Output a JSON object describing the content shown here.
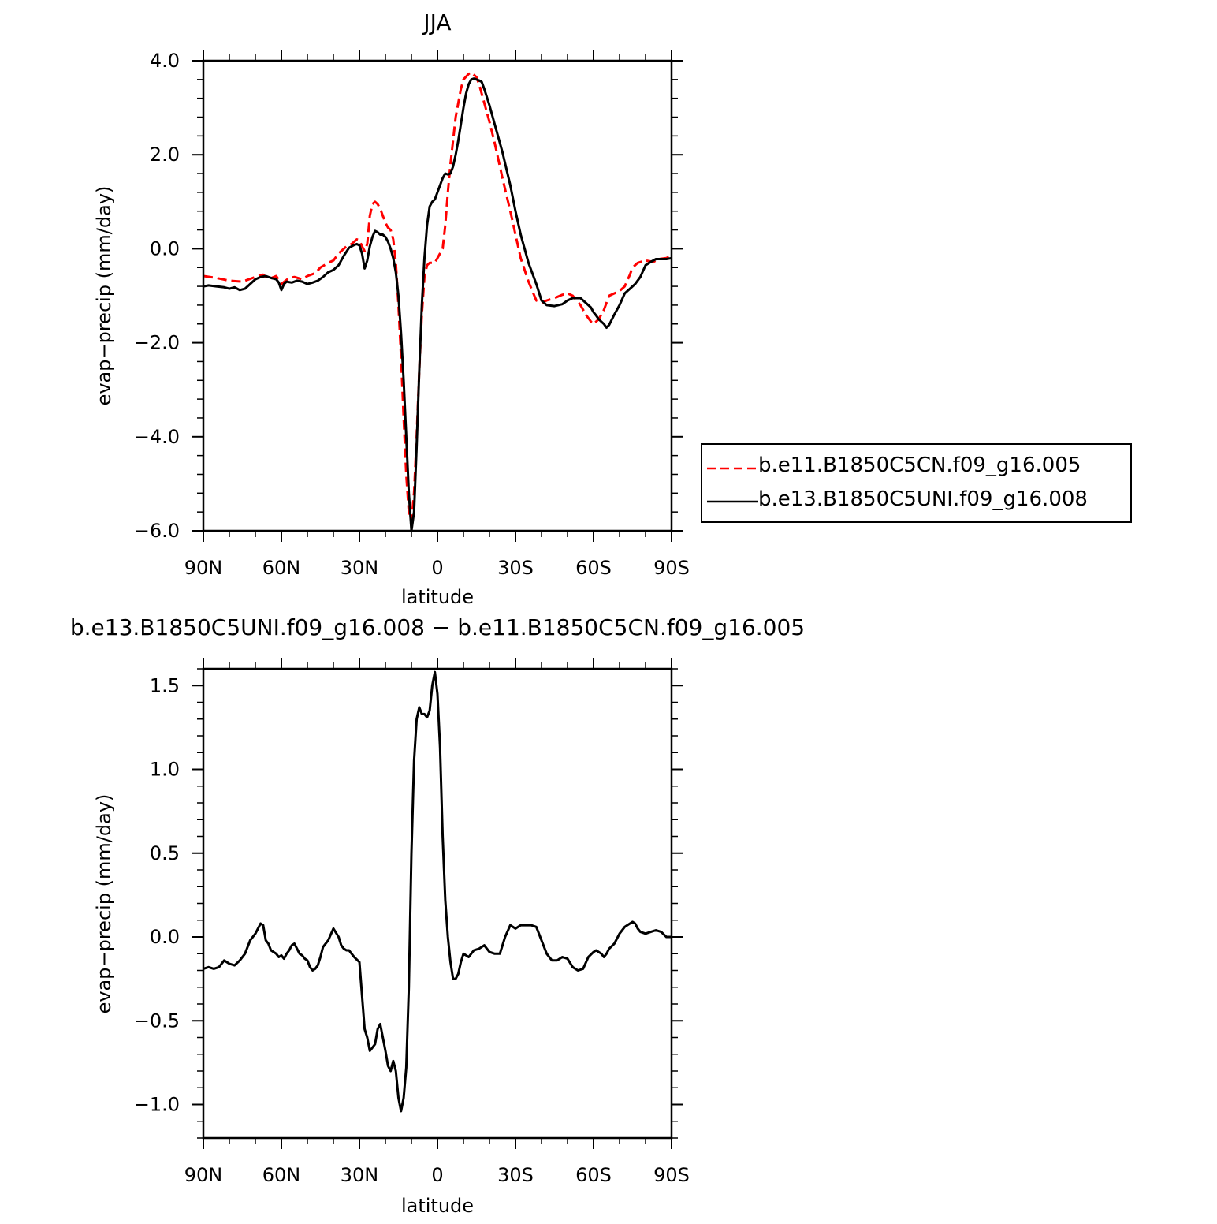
{
  "chart_data": [
    {
      "type": "line",
      "title": "JJA",
      "xlabel": "latitude",
      "ylabel": "evap−precip (mm/day)",
      "xlim": [
        90,
        -90
      ],
      "ylim": [
        -6.0,
        4.0
      ],
      "xticks": [
        90,
        60,
        30,
        0,
        -30,
        -60,
        -90
      ],
      "xticklabels": [
        "90N",
        "60N",
        "30N",
        "0",
        "30S",
        "60S",
        "90S"
      ],
      "yticks": [
        4.0,
        2.0,
        0.0,
        -2.0,
        -4.0,
        -6.0
      ],
      "yticklabels": [
        "4.0",
        "2.0",
        "0.0",
        "−2.0",
        "−4.0",
        "−6.0"
      ],
      "legend_position": "right",
      "series": [
        {
          "name": "b.e11.B1850C5CN.f09_g16.005",
          "color": "#ff0000",
          "dash": "dashed",
          "x": [
            90,
            85,
            80,
            75,
            70,
            67,
            65,
            62,
            60,
            57,
            55,
            52,
            50,
            47,
            45,
            42,
            40,
            38,
            35,
            33,
            31,
            30,
            29,
            28,
            27,
            26,
            25,
            24,
            23,
            22,
            20,
            19,
            18,
            17,
            16,
            15,
            14,
            13,
            12,
            11,
            10,
            9,
            8,
            7,
            6,
            5,
            4,
            3,
            2,
            1,
            0,
            -2,
            -3,
            -4,
            -5,
            -6,
            -7,
            -8,
            -9,
            -10,
            -12,
            -13,
            -14,
            -15,
            -16,
            -17,
            -18,
            -20,
            -22,
            -25,
            -28,
            -30,
            -32,
            -35,
            -38,
            -40,
            -42,
            -45,
            -48,
            -50,
            -52,
            -55,
            -57,
            -59,
            -60,
            -62,
            -64,
            -65,
            -66,
            -68,
            -70,
            -72,
            -74,
            -75,
            -77,
            -80,
            -83,
            -85,
            -88,
            -90
          ],
          "y": [
            -0.58,
            -0.62,
            -0.68,
            -0.7,
            -0.6,
            -0.55,
            -0.65,
            -0.58,
            -0.75,
            -0.62,
            -0.6,
            -0.65,
            -0.58,
            -0.52,
            -0.4,
            -0.3,
            -0.25,
            -0.1,
            0.05,
            0.1,
            0.2,
            0.18,
            0.05,
            -0.05,
            0.1,
            0.7,
            0.95,
            1.0,
            0.95,
            0.85,
            0.55,
            0.45,
            0.4,
            0.2,
            -0.3,
            -1.2,
            -2.3,
            -3.6,
            -4.8,
            -5.6,
            -5.8,
            -5.2,
            -4.0,
            -2.6,
            -1.4,
            -0.6,
            -0.35,
            -0.3,
            -0.3,
            -0.3,
            -0.2,
            0.0,
            0.5,
            1.2,
            1.8,
            2.3,
            2.8,
            3.1,
            3.4,
            3.6,
            3.72,
            3.75,
            3.7,
            3.65,
            3.5,
            3.3,
            3.1,
            2.7,
            2.25,
            1.5,
            0.8,
            0.3,
            -0.2,
            -0.7,
            -1.1,
            -1.15,
            -1.1,
            -1.05,
            -0.98,
            -0.95,
            -1.0,
            -1.2,
            -1.4,
            -1.55,
            -1.6,
            -1.5,
            -1.3,
            -1.15,
            -1.0,
            -0.95,
            -0.9,
            -0.8,
            -0.55,
            -0.4,
            -0.3,
            -0.25,
            -0.28,
            -0.22,
            -0.2,
            -0.15
          ]
        },
        {
          "name": "b.e13.B1850C5UNI.f09_g16.008",
          "color": "#000000",
          "dash": "solid",
          "x": [
            90,
            88,
            85,
            82,
            80,
            78,
            76,
            74,
            72,
            70,
            68,
            66,
            64,
            62,
            61,
            60,
            59,
            58,
            56,
            54,
            52,
            50,
            48,
            46,
            44,
            42,
            40,
            38,
            36,
            34,
            32,
            31,
            30,
            29,
            28,
            27,
            26,
            25,
            24,
            23,
            22,
            21,
            20,
            19,
            18,
            17,
            16,
            15,
            14,
            13,
            12,
            11,
            10,
            9,
            8,
            7,
            6,
            5,
            4,
            3,
            2,
            1,
            0,
            -1,
            -2,
            -3,
            -4,
            -5,
            -6,
            -7,
            -8,
            -9,
            -10,
            -11,
            -12,
            -13,
            -14,
            -15,
            -16,
            -17,
            -18,
            -20,
            -22,
            -25,
            -28,
            -30,
            -32,
            -35,
            -38,
            -40,
            -42,
            -45,
            -48,
            -50,
            -52,
            -55,
            -57,
            -59,
            -60,
            -61,
            -62,
            -63,
            -64,
            -65,
            -66,
            -68,
            -70,
            -72,
            -74,
            -75,
            -76,
            -78,
            -80,
            -82,
            -84,
            -86,
            -88,
            -90
          ],
          "y": [
            -0.8,
            -0.78,
            -0.8,
            -0.82,
            -0.85,
            -0.82,
            -0.88,
            -0.85,
            -0.75,
            -0.65,
            -0.6,
            -0.58,
            -0.62,
            -0.65,
            -0.72,
            -0.88,
            -0.75,
            -0.7,
            -0.72,
            -0.68,
            -0.7,
            -0.75,
            -0.72,
            -0.68,
            -0.6,
            -0.5,
            -0.45,
            -0.35,
            -0.15,
            0.02,
            0.08,
            0.1,
            0.07,
            -0.1,
            -0.42,
            -0.25,
            0.05,
            0.25,
            0.38,
            0.35,
            0.3,
            0.3,
            0.25,
            0.15,
            0.0,
            -0.2,
            -0.5,
            -1.0,
            -1.8,
            -2.8,
            -4.0,
            -5.2,
            -6.0,
            -5.6,
            -4.2,
            -2.6,
            -1.2,
            -0.2,
            0.5,
            0.9,
            1.0,
            1.05,
            1.2,
            1.35,
            1.5,
            1.6,
            1.58,
            1.6,
            1.75,
            2.0,
            2.3,
            2.65,
            3.0,
            3.3,
            3.5,
            3.6,
            3.62,
            3.6,
            3.58,
            3.55,
            3.4,
            3.05,
            2.65,
            2.05,
            1.35,
            0.8,
            0.3,
            -0.3,
            -0.75,
            -1.1,
            -1.2,
            -1.22,
            -1.18,
            -1.1,
            -1.05,
            -1.05,
            -1.15,
            -1.25,
            -1.35,
            -1.42,
            -1.5,
            -1.55,
            -1.6,
            -1.68,
            -1.62,
            -1.4,
            -1.2,
            -0.95,
            -0.85,
            -0.8,
            -0.75,
            -0.6,
            -0.35,
            -0.28,
            -0.22,
            -0.22,
            -0.22,
            -0.2
          ]
        }
      ]
    },
    {
      "type": "line",
      "title": "b.e13.B1850C5UNI.f09_g16.008 − b.e11.B1850C5CN.f09_g16.005",
      "xlabel": "latitude",
      "ylabel": "evap−precip (mm/day)",
      "xlim": [
        90,
        -90
      ],
      "ylim": [
        -1.2,
        1.6
      ],
      "xticks": [
        90,
        60,
        30,
        0,
        -30,
        -60,
        -90
      ],
      "xticklabels": [
        "90N",
        "60N",
        "30N",
        "0",
        "30S",
        "60S",
        "90S"
      ],
      "yticks": [
        1.5,
        1.0,
        0.5,
        0.0,
        -0.5,
        -1.0
      ],
      "yticklabels": [
        "1.5",
        "1.0",
        "0.5",
        "0.0",
        "−0.5",
        "−1.0"
      ],
      "series": [
        {
          "color": "#000000",
          "dash": "solid",
          "x": [
            90,
            88,
            86,
            84,
            82,
            80,
            78,
            76,
            74,
            72,
            70,
            69,
            68,
            67,
            66,
            65,
            64,
            62,
            61,
            60,
            59,
            58,
            57,
            56,
            55,
            54,
            53,
            52,
            51,
            50,
            49,
            48,
            47,
            46,
            45,
            44,
            42,
            40,
            38,
            37,
            36,
            35,
            34,
            33,
            32,
            30,
            28,
            27,
            26,
            25,
            24,
            23,
            22,
            21,
            20,
            19,
            18,
            17,
            16,
            15,
            14,
            13,
            12,
            11,
            10,
            9,
            8,
            7,
            6,
            5,
            4,
            3,
            2,
            1,
            0,
            -1,
            -2,
            -3,
            -4,
            -5,
            -6,
            -7,
            -8,
            -9,
            -10,
            -11,
            -12,
            -14,
            -16,
            -18,
            -19,
            -20,
            -22,
            -24,
            -26,
            -28,
            -30,
            -32,
            -34,
            -36,
            -38,
            -40,
            -42,
            -44,
            -46,
            -48,
            -50,
            -52,
            -54,
            -56,
            -58,
            -60,
            -61,
            -62,
            -63,
            -64,
            -65,
            -66,
            -68,
            -70,
            -72,
            -74,
            -75,
            -76,
            -77,
            -78,
            -80,
            -82,
            -84,
            -86,
            -88,
            -90
          ],
          "y": [
            -0.19,
            -0.18,
            -0.19,
            -0.18,
            -0.14,
            -0.16,
            -0.17,
            -0.14,
            -0.1,
            -0.02,
            0.02,
            0.05,
            0.08,
            0.07,
            -0.02,
            -0.04,
            -0.08,
            -0.1,
            -0.12,
            -0.11,
            -0.13,
            -0.1,
            -0.08,
            -0.05,
            -0.04,
            -0.07,
            -0.1,
            -0.11,
            -0.13,
            -0.14,
            -0.18,
            -0.2,
            -0.19,
            -0.17,
            -0.12,
            -0.06,
            -0.02,
            0.05,
            0.0,
            -0.05,
            -0.07,
            -0.08,
            -0.08,
            -0.1,
            -0.12,
            -0.15,
            -0.55,
            -0.6,
            -0.68,
            -0.66,
            -0.64,
            -0.55,
            -0.52,
            -0.6,
            -0.68,
            -0.77,
            -0.8,
            -0.74,
            -0.8,
            -0.96,
            -1.04,
            -0.96,
            -0.78,
            -0.3,
            0.5,
            1.05,
            1.3,
            1.37,
            1.33,
            1.33,
            1.31,
            1.35,
            1.5,
            1.58,
            1.45,
            1.13,
            0.6,
            0.22,
            0.0,
            -0.15,
            -0.25,
            -0.25,
            -0.22,
            -0.15,
            -0.1,
            -0.11,
            -0.12,
            -0.08,
            -0.07,
            -0.05,
            -0.07,
            -0.09,
            -0.1,
            -0.1,
            0.0,
            0.07,
            0.05,
            0.07,
            0.07,
            0.07,
            0.06,
            -0.02,
            -0.1,
            -0.14,
            -0.14,
            -0.12,
            -0.13,
            -0.18,
            -0.2,
            -0.19,
            -0.12,
            -0.09,
            -0.08,
            -0.09,
            -0.1,
            -0.12,
            -0.1,
            -0.07,
            -0.04,
            0.02,
            0.06,
            0.08,
            0.09,
            0.08,
            0.05,
            0.03,
            0.02,
            0.03,
            0.04,
            0.03,
            0.0,
            0.0
          ]
        }
      ]
    }
  ]
}
